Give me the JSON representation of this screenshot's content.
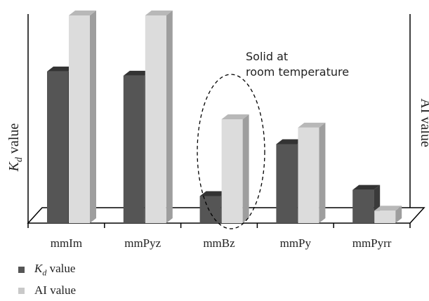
{
  "chart_data": {
    "type": "bar",
    "categories": [
      "mmIm",
      "mmPyz",
      "mmBz",
      "mmPy",
      "mmPyrr"
    ],
    "series": [
      {
        "name": "Kd value",
        "values": [
          0.73,
          0.71,
          0.13,
          0.38,
          0.16
        ],
        "color": "#555555"
      },
      {
        "name": "AI value",
        "values": [
          1.0,
          1.0,
          0.5,
          0.46,
          0.06
        ],
        "color": "#d9d9d9"
      }
    ],
    "ylabel_left_main": "K",
    "ylabel_left_sub": "d",
    "ylabel_left_suffix": " value",
    "ylabel_right": "AI value",
    "annotation": {
      "line1": "Solid at",
      "line2": "room temperature",
      "category": "mmBz"
    },
    "ylim": [
      0,
      1
    ],
    "grid": false,
    "legend_placement": "bottom-left",
    "legend": [
      {
        "main": "K",
        "sub": "d",
        "suffix": " value",
        "color": "#555555"
      },
      {
        "main": "AI value",
        "sub": "",
        "suffix": "",
        "color": "#c9c9c9"
      }
    ]
  }
}
